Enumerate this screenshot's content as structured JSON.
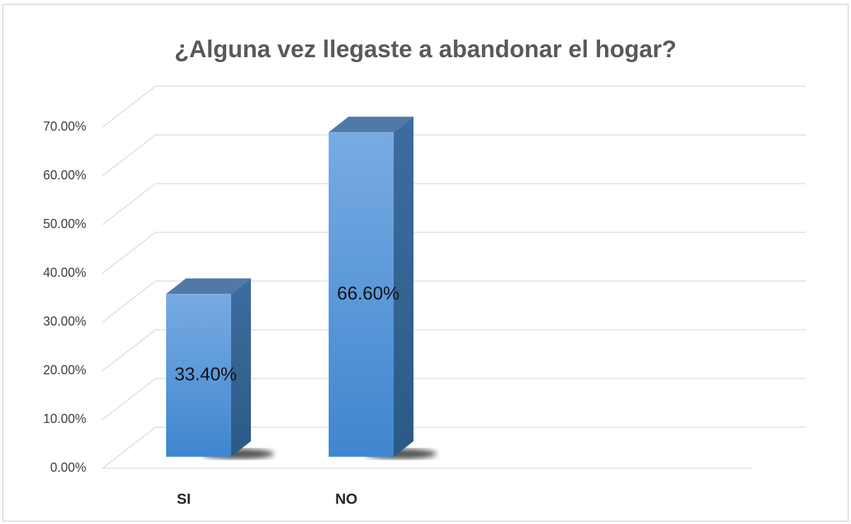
{
  "chart_data": {
    "type": "bar3d",
    "title": "¿Alguna vez llegaste a abandonar el hogar?",
    "categories": [
      "SI",
      "NO",
      null,
      null
    ],
    "values": [
      33.4,
      66.6,
      null,
      null
    ],
    "value_labels": [
      "33.40%",
      "66.60%",
      null,
      null
    ],
    "color": "#4a90d9",
    "ylim": [
      0,
      70
    ],
    "yticks": [
      {
        "value": 0,
        "label": "0.00%"
      },
      {
        "value": 10,
        "label": "10.00%"
      },
      {
        "value": 20,
        "label": "20.00%"
      },
      {
        "value": 30,
        "label": "30.00%"
      },
      {
        "value": 40,
        "label": "40.00%"
      },
      {
        "value": 50,
        "label": "50.00%"
      },
      {
        "value": 60,
        "label": "60.00%"
      },
      {
        "value": 70,
        "label": "70.00%"
      }
    ],
    "grid": true
  }
}
